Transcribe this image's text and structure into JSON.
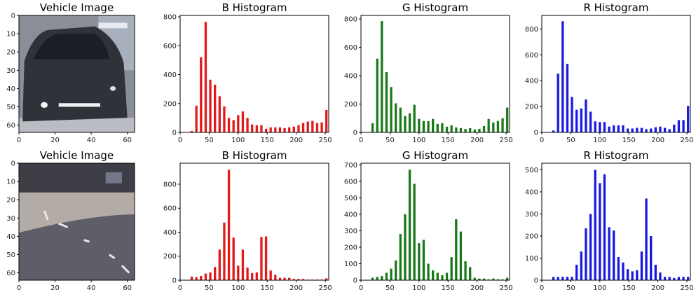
{
  "chart_data": [
    {
      "type": "image",
      "title": "Vehicle Image",
      "image_kind": "rear-car",
      "xticks": [
        0,
        20,
        40,
        60
      ],
      "yticks": [
        0,
        10,
        20,
        30,
        40,
        50,
        60
      ],
      "xlim": [
        0,
        64
      ],
      "ylim": [
        64,
        0
      ]
    },
    {
      "type": "bar",
      "title": "B Histogram",
      "color": "#e31a1a",
      "x": [
        20,
        28,
        36,
        44,
        52,
        60,
        68,
        76,
        84,
        92,
        100,
        108,
        116,
        124,
        132,
        140,
        148,
        156,
        164,
        172,
        180,
        188,
        196,
        204,
        212,
        220,
        228,
        236,
        244,
        252
      ],
      "values": [
        10,
        185,
        520,
        765,
        365,
        330,
        250,
        180,
        100,
        85,
        120,
        145,
        100,
        55,
        50,
        50,
        25,
        35,
        35,
        35,
        30,
        35,
        40,
        50,
        65,
        75,
        80,
        65,
        70,
        155
      ],
      "xticks": [
        0,
        50,
        100,
        150,
        200,
        250
      ],
      "yticks": [
        0,
        200,
        400,
        600,
        800
      ],
      "xlim": [
        0,
        256
      ],
      "ylim": [
        0,
        810
      ]
    },
    {
      "type": "bar",
      "title": "G Histogram",
      "color": "#1a7a1a",
      "x": [
        20,
        28,
        36,
        44,
        52,
        60,
        68,
        76,
        84,
        92,
        100,
        108,
        116,
        124,
        132,
        140,
        148,
        156,
        164,
        172,
        180,
        188,
        196,
        204,
        212,
        220,
        228,
        236,
        244,
        252
      ],
      "values": [
        65,
        520,
        785,
        425,
        320,
        205,
        175,
        115,
        135,
        195,
        95,
        80,
        80,
        95,
        60,
        65,
        40,
        50,
        35,
        30,
        25,
        30,
        20,
        25,
        45,
        95,
        70,
        80,
        100,
        175
      ],
      "xticks": [
        0,
        50,
        100,
        150,
        200,
        250
      ],
      "yticks": [
        0,
        200,
        400,
        600,
        800
      ],
      "xlim": [
        0,
        256
      ],
      "ylim": [
        0,
        825
      ]
    },
    {
      "type": "bar",
      "title": "R Histogram",
      "color": "#1a1ae0",
      "x": [
        20,
        28,
        36,
        44,
        52,
        60,
        68,
        76,
        84,
        92,
        100,
        108,
        116,
        124,
        132,
        140,
        148,
        156,
        164,
        172,
        180,
        188,
        196,
        204,
        212,
        220,
        228,
        236,
        244,
        252
      ],
      "values": [
        15,
        455,
        860,
        530,
        275,
        175,
        185,
        255,
        160,
        85,
        80,
        80,
        45,
        55,
        55,
        55,
        30,
        30,
        35,
        35,
        25,
        30,
        40,
        45,
        35,
        25,
        60,
        95,
        95,
        205
      ],
      "xticks": [
        0,
        50,
        100,
        150,
        200,
        250
      ],
      "yticks": [
        0,
        200,
        400,
        600,
        800
      ],
      "xlim": [
        0,
        256
      ],
      "ylim": [
        0,
        905
      ]
    },
    {
      "type": "image",
      "title": "Vehicle Image",
      "image_kind": "road",
      "xticks": [
        0,
        20,
        40,
        60
      ],
      "yticks": [
        0,
        10,
        20,
        30,
        40,
        50,
        60
      ],
      "xlim": [
        0,
        64
      ],
      "ylim": [
        64,
        0
      ]
    },
    {
      "type": "bar",
      "title": "B Histogram",
      "color": "#e31a1a",
      "x": [
        20,
        28,
        36,
        44,
        52,
        60,
        68,
        76,
        84,
        92,
        100,
        108,
        116,
        124,
        132,
        140,
        148,
        156,
        164,
        172,
        180,
        188,
        196,
        204,
        212,
        220,
        228,
        236,
        244,
        252
      ],
      "values": [
        30,
        25,
        35,
        55,
        65,
        110,
        255,
        480,
        920,
        355,
        120,
        255,
        105,
        60,
        65,
        360,
        365,
        80,
        45,
        20,
        20,
        20,
        10,
        10,
        10,
        5,
        5,
        5,
        5,
        15
      ],
      "xticks": [
        0,
        50,
        100,
        150,
        200,
        250
      ],
      "yticks": [
        0,
        200,
        400,
        600,
        800
      ],
      "xlim": [
        0,
        256
      ],
      "ylim": [
        0,
        975
      ]
    },
    {
      "type": "bar",
      "title": "G Histogram",
      "color": "#1a7a1a",
      "x": [
        20,
        28,
        36,
        44,
        52,
        60,
        68,
        76,
        84,
        92,
        100,
        108,
        116,
        124,
        132,
        140,
        148,
        156,
        164,
        172,
        180,
        188,
        196,
        204,
        212,
        220,
        228,
        236,
        244,
        252
      ],
      "values": [
        15,
        20,
        25,
        45,
        70,
        120,
        280,
        400,
        670,
        585,
        225,
        245,
        100,
        60,
        45,
        30,
        45,
        140,
        370,
        295,
        115,
        80,
        15,
        10,
        10,
        5,
        10,
        5,
        5,
        15
      ],
      "xticks": [
        0,
        50,
        100,
        150,
        200,
        250
      ],
      "yticks": [
        0,
        100,
        200,
        300,
        400,
        500,
        600,
        700
      ],
      "xlim": [
        0,
        256
      ],
      "ylim": [
        0,
        710
      ]
    },
    {
      "type": "bar",
      "title": "R Histogram",
      "color": "#1a1ae0",
      "x": [
        20,
        28,
        36,
        44,
        52,
        60,
        68,
        76,
        84,
        92,
        100,
        108,
        116,
        124,
        132,
        140,
        148,
        156,
        164,
        172,
        180,
        188,
        196,
        204,
        212,
        220,
        228,
        236,
        244,
        252
      ],
      "values": [
        15,
        15,
        15,
        15,
        15,
        70,
        130,
        235,
        300,
        500,
        440,
        480,
        240,
        225,
        105,
        80,
        50,
        40,
        45,
        130,
        370,
        200,
        70,
        35,
        15,
        15,
        10,
        15,
        15,
        15
      ],
      "xticks": [
        0,
        50,
        100,
        150,
        200,
        250
      ],
      "yticks": [
        0,
        100,
        200,
        300,
        400,
        500
      ],
      "xlim": [
        0,
        256
      ],
      "ylim": [
        0,
        530
      ]
    }
  ]
}
